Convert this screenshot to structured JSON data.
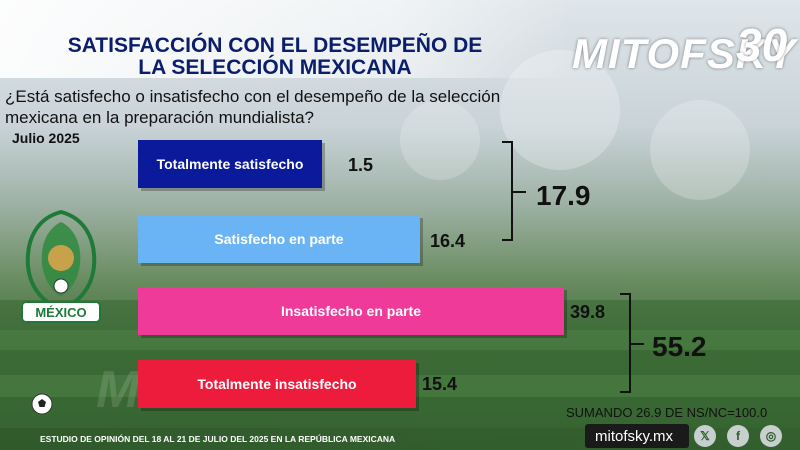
{
  "header": {
    "title_line1": "SATISFACCIÓN CON EL DESEMPEÑO DE",
    "title_line2": "LA SELECCIÓN MEXICANA",
    "brand": "MITOFSKY",
    "brand_number": "30"
  },
  "question": "¿Está satisfecho o insatisfecho con el desempeño de la selección mexicana en la preparación mundialista?",
  "date_label": "Julio 2025",
  "emblem_text": "MÉXICO",
  "watermark": "MITOFSKY",
  "chart_data": {
    "type": "bar",
    "orientation": "horizontal",
    "categories": [
      "Totalmente satisfecho",
      "Satisfecho en parte",
      "Insatisfecho en parte",
      "Totalmente insatisfecho"
    ],
    "values": [
      1.5,
      16.4,
      39.8,
      15.4
    ],
    "value_labels": [
      "1.5",
      "16.4",
      "39.8",
      "15.4"
    ],
    "colors": [
      "#0a1a9a",
      "#6ab4f5",
      "#f03a9a",
      "#ee1c3c"
    ],
    "group_totals": [
      {
        "label": "17.9",
        "value": 17.9,
        "members": [
          0,
          1
        ]
      },
      {
        "label": "55.2",
        "value": 55.2,
        "members": [
          2,
          3
        ]
      }
    ],
    "xlim": [
      0,
      39.8
    ],
    "grid": false,
    "legend": "none"
  },
  "note": "SUMANDO 26.9 DE NS/NC=100.0",
  "footer": {
    "study_text": "ESTUDIO DE OPINIÓN DEL 18 AL 21 DE JULIO DEL 2025 EN LA REPÚBLICA MEXICANA",
    "site": "mitofsky.mx"
  },
  "social_icons": [
    "x-icon",
    "facebook-icon",
    "instagram-icon"
  ]
}
